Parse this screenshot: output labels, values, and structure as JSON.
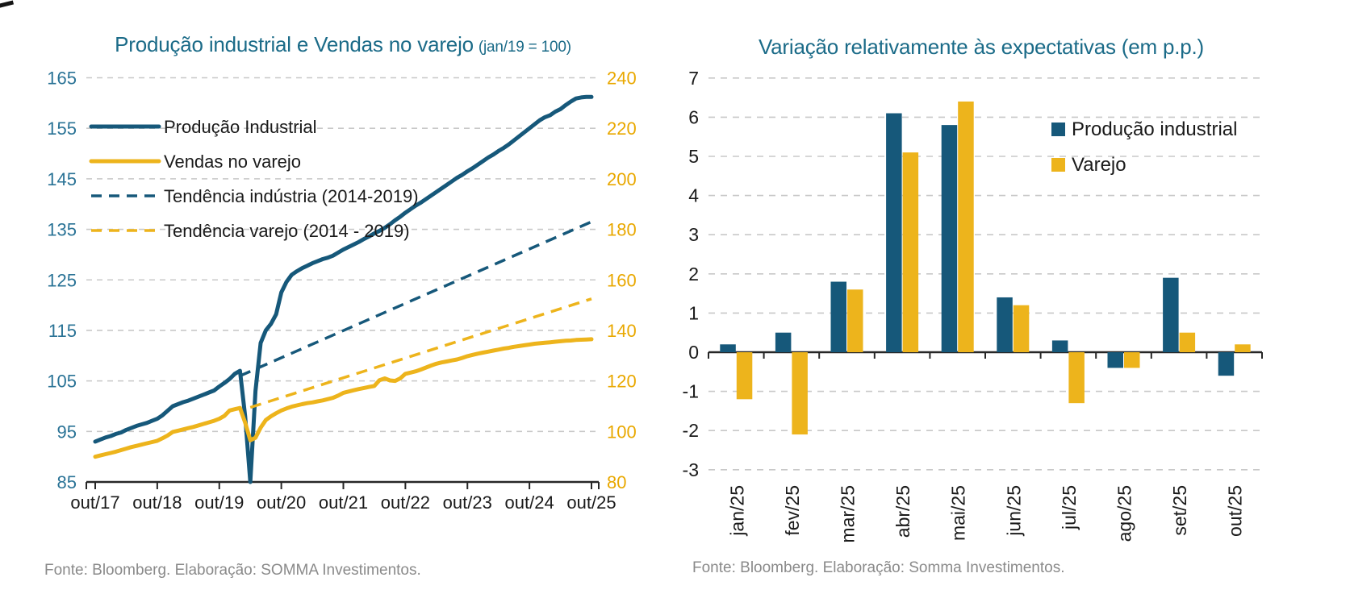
{
  "page": {
    "background": "#ffffff",
    "colors": {
      "teal_series": "#16587A",
      "gold_series": "#EDB41C",
      "teal_axis_labels": "#2A7396",
      "gold_axis_labels": "#E9A800",
      "title_teal": "#1B6B88",
      "grid_gray": "#C8C8C8",
      "axis_black": "#262626",
      "text_black": "#1A1A1A",
      "source_gray": "#8A8A8A"
    }
  },
  "chart_data": [
    {
      "type": "line",
      "title": "Produção industrial e Vendas no varejo",
      "title_suffix": "(jan/19 = 100)",
      "grid": "dashed-horizontal",
      "legend_position": "upper-left-inside",
      "x_unit": "months since out/17",
      "x_tick_labels": [
        "out/17",
        "out/18",
        "out/19",
        "out/20",
        "out/21",
        "out/22",
        "out/23",
        "out/24",
        "out/25"
      ],
      "left_axis": {
        "min": 85,
        "max": 165,
        "label_values": [
          85,
          95,
          105,
          115,
          125,
          135,
          145,
          155,
          165
        ],
        "color": "#2A7396"
      },
      "right_axis": {
        "min": 80,
        "max": 240,
        "label_values": [
          80,
          100,
          120,
          140,
          160,
          180,
          200,
          220,
          240
        ],
        "color": "#E9A800"
      },
      "series": [
        {
          "name": "Produção Industrial",
          "axis": "left",
          "style": "solid",
          "color": "#16587A",
          "points": [
            [
              0,
              93
            ],
            [
              1,
              93.4
            ],
            [
              2,
              93.8
            ],
            [
              3,
              94.1
            ],
            [
              4,
              94.5
            ],
            [
              5,
              94.8
            ],
            [
              6,
              95.3
            ],
            [
              7,
              95.7
            ],
            [
              8,
              96.1
            ],
            [
              9,
              96.4
            ],
            [
              10,
              96.7
            ],
            [
              11,
              97.1
            ],
            [
              12,
              97.5
            ],
            [
              13,
              98.2
            ],
            [
              14,
              99.1
            ],
            [
              15,
              100
            ],
            [
              16,
              100.4
            ],
            [
              17,
              100.8
            ],
            [
              18,
              101.1
            ],
            [
              19,
              101.5
            ],
            [
              20,
              101.9
            ],
            [
              21,
              102.3
            ],
            [
              22,
              102.7
            ],
            [
              23,
              103.1
            ],
            [
              24,
              103.9
            ],
            [
              25,
              104.6
            ],
            [
              26,
              105.4
            ],
            [
              27,
              106.4
            ],
            [
              28,
              107
            ],
            [
              29,
              98
            ],
            [
              30,
              85
            ],
            [
              31,
              103
            ],
            [
              32,
              112.5
            ],
            [
              33,
              115
            ],
            [
              34,
              116.3
            ],
            [
              35,
              118.2
            ],
            [
              36,
              122.5
            ],
            [
              37,
              124.6
            ],
            [
              38,
              126
            ],
            [
              39,
              126.7
            ],
            [
              40,
              127.3
            ],
            [
              41,
              127.8
            ],
            [
              42,
              128.3
            ],
            [
              43,
              128.7
            ],
            [
              44,
              129.1
            ],
            [
              45,
              129.4
            ],
            [
              46,
              129.8
            ],
            [
              47,
              130.4
            ],
            [
              48,
              131
            ],
            [
              49,
              131.5
            ],
            [
              50,
              132
            ],
            [
              51,
              132.5
            ],
            [
              52,
              133.1
            ],
            [
              53,
              133.6
            ],
            [
              54,
              134.2
            ],
            [
              55,
              134.7
            ],
            [
              56,
              135.3
            ],
            [
              57,
              136
            ],
            [
              58,
              136.8
            ],
            [
              59,
              137.5
            ],
            [
              60,
              138.3
            ],
            [
              61,
              139
            ],
            [
              62,
              139.7
            ],
            [
              63,
              140.3
            ],
            [
              64,
              141
            ],
            [
              65,
              141.7
            ],
            [
              66,
              142.4
            ],
            [
              67,
              143.1
            ],
            [
              68,
              143.8
            ],
            [
              69,
              144.5
            ],
            [
              70,
              145.2
            ],
            [
              71,
              145.8
            ],
            [
              72,
              146.5
            ],
            [
              73,
              147.1
            ],
            [
              74,
              147.8
            ],
            [
              75,
              148.5
            ],
            [
              76,
              149.2
            ],
            [
              77,
              149.8
            ],
            [
              78,
              150.5
            ],
            [
              79,
              151.1
            ],
            [
              80,
              151.8
            ],
            [
              81,
              152.6
            ],
            [
              82,
              153.4
            ],
            [
              83,
              154.2
            ],
            [
              84,
              155
            ],
            [
              85,
              155.8
            ],
            [
              86,
              156.6
            ],
            [
              87,
              157.2
            ],
            [
              88,
              157.6
            ],
            [
              89,
              158.3
            ],
            [
              90,
              158.8
            ],
            [
              91,
              159.6
            ],
            [
              92,
              160.3
            ],
            [
              93,
              160.9
            ],
            [
              94,
              161.1
            ],
            [
              95,
              161.2
            ],
            [
              96,
              161.2
            ]
          ]
        },
        {
          "name": "Vendas no varejo",
          "axis": "right",
          "style": "solid",
          "color": "#EDB41C",
          "points": [
            [
              0,
              90
            ],
            [
              1,
              90.5
            ],
            [
              2,
              91
            ],
            [
              3,
              91.5
            ],
            [
              4,
              92
            ],
            [
              5,
              92.6
            ],
            [
              6,
              93.2
            ],
            [
              7,
              93.8
            ],
            [
              8,
              94.3
            ],
            [
              9,
              94.8
            ],
            [
              10,
              95.3
            ],
            [
              11,
              95.8
            ],
            [
              12,
              96.3
            ],
            [
              13,
              97.3
            ],
            [
              14,
              98.4
            ],
            [
              15,
              99.8
            ],
            [
              16,
              100.3
            ],
            [
              17,
              100.8
            ],
            [
              18,
              101.3
            ],
            [
              19,
              101.8
            ],
            [
              20,
              102.4
            ],
            [
              21,
              103
            ],
            [
              22,
              103.6
            ],
            [
              23,
              104.2
            ],
            [
              24,
              105
            ],
            [
              25,
              106.2
            ],
            [
              26,
              108.3
            ],
            [
              27,
              108.8
            ],
            [
              28,
              109.3
            ],
            [
              29,
              103.5
            ],
            [
              30,
              96.5
            ],
            [
              31,
              97.5
            ],
            [
              32,
              101.5
            ],
            [
              33,
              104.5
            ],
            [
              34,
              106
            ],
            [
              35,
              107.2
            ],
            [
              36,
              108.3
            ],
            [
              37,
              109.1
            ],
            [
              38,
              109.8
            ],
            [
              39,
              110.3
            ],
            [
              40,
              110.8
            ],
            [
              41,
              111.2
            ],
            [
              42,
              111.5
            ],
            [
              43,
              111.9
            ],
            [
              44,
              112.3
            ],
            [
              45,
              112.8
            ],
            [
              46,
              113.3
            ],
            [
              47,
              114.2
            ],
            [
              48,
              115.3
            ],
            [
              49,
              115.8
            ],
            [
              50,
              116.3
            ],
            [
              51,
              116.8
            ],
            [
              52,
              117.2
            ],
            [
              53,
              117.6
            ],
            [
              54,
              118
            ],
            [
              55,
              120.3
            ],
            [
              56,
              121
            ],
            [
              57,
              120.2
            ],
            [
              58,
              120
            ],
            [
              59,
              121
            ],
            [
              60,
              122.8
            ],
            [
              61,
              123.3
            ],
            [
              62,
              123.8
            ],
            [
              63,
              124.5
            ],
            [
              64,
              125.3
            ],
            [
              65,
              126.1
            ],
            [
              66,
              126.8
            ],
            [
              67,
              127.3
            ],
            [
              68,
              127.7
            ],
            [
              69,
              128.1
            ],
            [
              70,
              128.5
            ],
            [
              71,
              129.1
            ],
            [
              72,
              129.8
            ],
            [
              73,
              130.3
            ],
            [
              74,
              130.8
            ],
            [
              75,
              131.2
            ],
            [
              76,
              131.6
            ],
            [
              77,
              132
            ],
            [
              78,
              132.4
            ],
            [
              79,
              132.8
            ],
            [
              80,
              133.1
            ],
            [
              81,
              133.5
            ],
            [
              82,
              133.8
            ],
            [
              83,
              134.1
            ],
            [
              84,
              134.4
            ],
            [
              85,
              134.7
            ],
            [
              86,
              134.9
            ],
            [
              87,
              135.1
            ],
            [
              88,
              135.3
            ],
            [
              89,
              135.5
            ],
            [
              90,
              135.7
            ],
            [
              91,
              135.9
            ],
            [
              92,
              136
            ],
            [
              93,
              136.2
            ],
            [
              94,
              136.3
            ],
            [
              95,
              136.4
            ],
            [
              96,
              136.5
            ]
          ]
        },
        {
          "name": "Tendência indústria (2014-2019)",
          "axis": "left",
          "style": "dashed",
          "color": "#16587A",
          "points": [
            [
              28,
              106
            ],
            [
              96,
              136.5
            ]
          ]
        },
        {
          "name": "Tendência varejo (2014 - 2019)",
          "axis": "right",
          "style": "dashed",
          "color": "#EDB41C",
          "points": [
            [
              30,
              109.5
            ],
            [
              96,
              152.5
            ]
          ]
        }
      ],
      "source": "Fonte: Bloomberg. Elaboração: SOMMA Investimentos."
    },
    {
      "type": "bar",
      "title": "Variação relativamente às expectativas (em p.p.)",
      "grid": "dashed-horizontal",
      "legend_position": "upper-right-inside",
      "categories": [
        "jan/25",
        "fev/25",
        "mar/25",
        "abr/25",
        "mai/25",
        "jun/25",
        "jul/25",
        "ago/25",
        "set/25",
        "out/25"
      ],
      "ylim": [
        -3,
        7
      ],
      "yticks": [
        7,
        6,
        5,
        4,
        3,
        2,
        1,
        0,
        -1,
        -2,
        -3
      ],
      "series": [
        {
          "name": "Produção industrial",
          "color": "#16587A",
          "values": [
            0.2,
            0.5,
            1.8,
            6.1,
            5.8,
            1.4,
            0.3,
            -0.4,
            1.9,
            -0.6
          ]
        },
        {
          "name": "Varejo",
          "color": "#EDB41C",
          "values": [
            -1.2,
            -2.1,
            1.6,
            5.1,
            6.4,
            1.2,
            -1.3,
            -0.4,
            0.5,
            0.2
          ]
        }
      ],
      "source": "Fonte: Bloomberg. Elaboração: Somma Investimentos."
    }
  ]
}
